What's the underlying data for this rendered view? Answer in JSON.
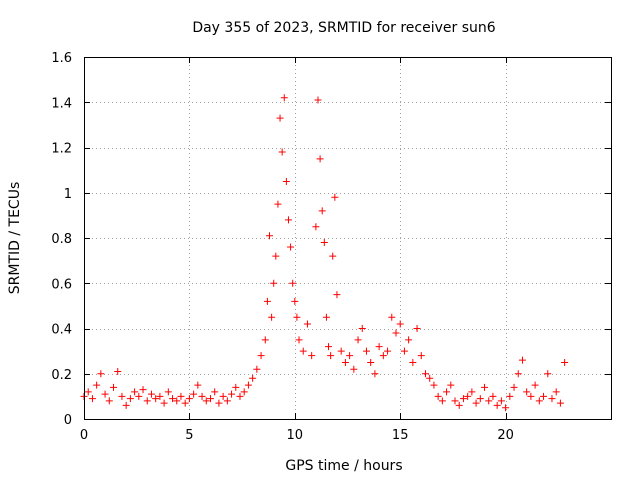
{
  "chart_data": {
    "type": "scatter",
    "title": "Day 355 of 2023, SRMTID for receiver sun6",
    "xlabel": "GPS time / hours",
    "ylabel": "SRMTID / TECUs",
    "xlim": [
      0,
      25
    ],
    "ylim": [
      0,
      1.6
    ],
    "xticks": [
      0,
      5,
      10,
      15,
      20
    ],
    "xtick_labels": [
      "0",
      "5",
      "10",
      "15",
      "20"
    ],
    "yticks": [
      0,
      0.2,
      0.4,
      0.6,
      0.8,
      1.0,
      1.2,
      1.4,
      1.6
    ],
    "ytick_labels": [
      "0",
      "0.2",
      "0.4",
      "0.6",
      "0.8",
      "1",
      "1.2",
      "1.4",
      "1.6"
    ],
    "grid": true,
    "marker": "plus",
    "marker_color": "#ff0000",
    "series": [
      {
        "name": "sun6",
        "x": [
          0.0,
          0.2,
          0.4,
          0.6,
          0.8,
          1.0,
          1.2,
          1.4,
          1.6,
          1.8,
          2.0,
          2.2,
          2.4,
          2.6,
          2.8,
          3.0,
          3.2,
          3.4,
          3.6,
          3.8,
          4.0,
          4.2,
          4.4,
          4.6,
          4.8,
          5.0,
          5.2,
          5.4,
          5.6,
          5.8,
          6.0,
          6.2,
          6.4,
          6.6,
          6.8,
          7.0,
          7.2,
          7.4,
          7.6,
          7.8,
          8.0,
          8.2,
          8.4,
          8.6,
          8.7,
          8.8,
          8.9,
          9.0,
          9.1,
          9.2,
          9.3,
          9.4,
          9.5,
          9.6,
          9.7,
          9.8,
          9.9,
          10.0,
          10.1,
          10.2,
          10.4,
          10.6,
          10.8,
          11.0,
          11.1,
          11.2,
          11.3,
          11.4,
          11.5,
          11.6,
          11.7,
          11.8,
          11.9,
          12.0,
          12.2,
          12.4,
          12.6,
          12.8,
          13.0,
          13.2,
          13.4,
          13.6,
          13.8,
          14.0,
          14.2,
          14.4,
          14.6,
          14.8,
          15.0,
          15.2,
          15.4,
          15.6,
          15.8,
          16.0,
          16.2,
          16.4,
          16.6,
          16.8,
          17.0,
          17.2,
          17.4,
          17.6,
          17.8,
          18.0,
          18.2,
          18.4,
          18.6,
          18.8,
          19.0,
          19.2,
          19.4,
          19.6,
          19.8,
          20.0,
          20.2,
          20.4,
          20.6,
          20.8,
          21.0,
          21.2,
          21.4,
          21.6,
          21.8,
          22.0,
          22.2,
          22.4,
          22.6,
          22.8
        ],
        "y": [
          0.1,
          0.12,
          0.09,
          0.15,
          0.2,
          0.11,
          0.08,
          0.14,
          0.21,
          0.1,
          0.06,
          0.09,
          0.12,
          0.1,
          0.13,
          0.08,
          0.11,
          0.09,
          0.1,
          0.07,
          0.12,
          0.09,
          0.08,
          0.1,
          0.07,
          0.09,
          0.11,
          0.15,
          0.1,
          0.08,
          0.09,
          0.12,
          0.07,
          0.1,
          0.08,
          0.11,
          0.14,
          0.1,
          0.12,
          0.15,
          0.18,
          0.22,
          0.28,
          0.35,
          0.52,
          0.81,
          0.45,
          0.6,
          0.72,
          0.95,
          1.33,
          1.18,
          1.42,
          1.05,
          0.88,
          0.76,
          0.6,
          0.52,
          0.45,
          0.35,
          0.3,
          0.42,
          0.28,
          0.85,
          1.41,
          1.15,
          0.92,
          0.78,
          0.45,
          0.32,
          0.28,
          0.72,
          0.98,
          0.55,
          0.3,
          0.25,
          0.28,
          0.22,
          0.35,
          0.4,
          0.3,
          0.25,
          0.2,
          0.32,
          0.28,
          0.3,
          0.45,
          0.38,
          0.42,
          0.3,
          0.35,
          0.25,
          0.4,
          0.28,
          0.2,
          0.18,
          0.15,
          0.1,
          0.08,
          0.12,
          0.15,
          0.08,
          0.06,
          0.09,
          0.1,
          0.12,
          0.07,
          0.09,
          0.14,
          0.08,
          0.1,
          0.06,
          0.08,
          0.05,
          0.1,
          0.14,
          0.2,
          0.26,
          0.12,
          0.1,
          0.15,
          0.08,
          0.1,
          0.2,
          0.09,
          0.12,
          0.07,
          0.25
        ]
      }
    ]
  }
}
